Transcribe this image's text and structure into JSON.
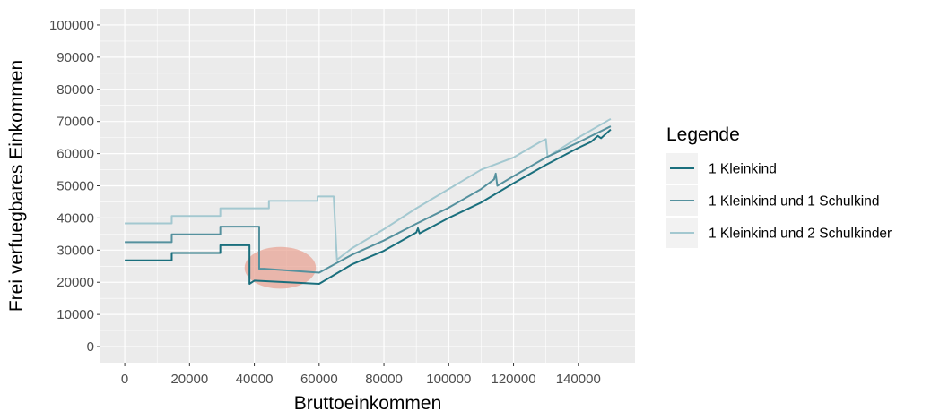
{
  "chart_data": {
    "type": "line",
    "title": "",
    "xlabel": "Bruttoeinkommen",
    "ylabel": "Frei verfuegbares Einkommen",
    "xlim": [
      -7500,
      157500
    ],
    "ylim": [
      -5000,
      105000
    ],
    "x_ticks": [
      0,
      20000,
      40000,
      60000,
      80000,
      100000,
      120000,
      140000
    ],
    "y_ticks": [
      0,
      10000,
      20000,
      30000,
      40000,
      50000,
      60000,
      70000,
      80000,
      90000,
      100000
    ],
    "grid": true,
    "legend": {
      "title": "Legende",
      "position": "right"
    },
    "series": [
      {
        "name": "1 Kleinkind",
        "color": "#1a6f7d",
        "points": [
          [
            0,
            26800
          ],
          [
            14500,
            26800
          ],
          [
            14500,
            29100
          ],
          [
            29500,
            29100
          ],
          [
            29500,
            31500
          ],
          [
            38500,
            31500
          ],
          [
            38500,
            19500
          ],
          [
            40000,
            20500
          ],
          [
            60000,
            19500
          ],
          [
            70000,
            25500
          ],
          [
            80000,
            29800
          ],
          [
            90000,
            35500
          ],
          [
            90500,
            36800
          ],
          [
            91000,
            35200
          ],
          [
            100000,
            40000
          ],
          [
            110000,
            44800
          ],
          [
            115000,
            47800
          ],
          [
            120000,
            50800
          ],
          [
            130000,
            56500
          ],
          [
            140000,
            61800
          ],
          [
            144000,
            63700
          ],
          [
            146000,
            65500
          ],
          [
            147000,
            64800
          ],
          [
            150000,
            67500
          ]
        ]
      },
      {
        "name": "1 Kleinkind und 1 Schulkind",
        "color": "#55919e",
        "points": [
          [
            0,
            32500
          ],
          [
            14500,
            32500
          ],
          [
            14500,
            34900
          ],
          [
            29500,
            34900
          ],
          [
            29500,
            37300
          ],
          [
            41500,
            37300
          ],
          [
            41500,
            24200
          ],
          [
            43000,
            24200
          ],
          [
            60000,
            23000
          ],
          [
            70000,
            28500
          ],
          [
            80000,
            33000
          ],
          [
            90000,
            38200
          ],
          [
            100000,
            43200
          ],
          [
            110000,
            49000
          ],
          [
            114000,
            52000
          ],
          [
            114500,
            53800
          ],
          [
            115000,
            50000
          ],
          [
            120000,
            53000
          ],
          [
            130000,
            58800
          ],
          [
            140000,
            63500
          ],
          [
            150000,
            68500
          ]
        ]
      },
      {
        "name": "1 Kleinkind und 2 Schulkinder",
        "color": "#a3c8d0",
        "points": [
          [
            0,
            38300
          ],
          [
            14500,
            38300
          ],
          [
            14500,
            40600
          ],
          [
            29500,
            40600
          ],
          [
            29500,
            43000
          ],
          [
            44500,
            43000
          ],
          [
            44500,
            45300
          ],
          [
            59500,
            45300
          ],
          [
            59500,
            46700
          ],
          [
            64500,
            46700
          ],
          [
            65500,
            27000
          ],
          [
            70000,
            30500
          ],
          [
            80000,
            36500
          ],
          [
            90000,
            43000
          ],
          [
            100000,
            49000
          ],
          [
            110000,
            55000
          ],
          [
            120000,
            58800
          ],
          [
            128000,
            63500
          ],
          [
            130000,
            64500
          ],
          [
            130500,
            59000
          ],
          [
            140000,
            65000
          ],
          [
            150000,
            70800
          ]
        ]
      }
    ],
    "annotations": [
      {
        "type": "ellipse",
        "center": [
          48000,
          24500
        ],
        "radius": [
          11000,
          6500
        ],
        "color": "#e8a090"
      }
    ]
  }
}
